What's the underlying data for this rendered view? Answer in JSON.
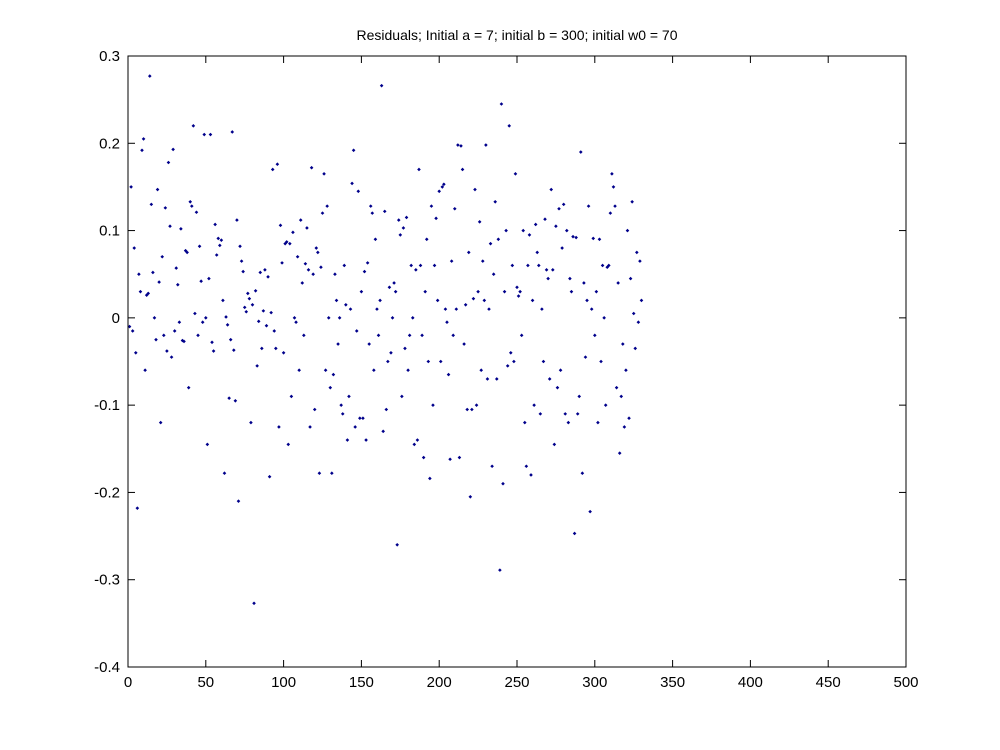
{
  "chart_data": {
    "type": "scatter",
    "title": "Residuals; Initial a = 7; initial b = 300; initial w0 = 70",
    "xlabel": "",
    "ylabel": "",
    "xlim": [
      0,
      500
    ],
    "ylim": [
      -0.4,
      0.3
    ],
    "xticks": [
      "0",
      "50",
      "100",
      "150",
      "200",
      "250",
      "300",
      "350",
      "400",
      "450",
      "500"
    ],
    "yticks": [
      "0.3",
      "0.2",
      "0.1",
      "0",
      "-0.1",
      "-0.2",
      "-0.3",
      "-0.4"
    ],
    "grid": false,
    "marker_color": "#00008B",
    "x_start": 1,
    "values": [
      -0.01,
      0.15,
      -0.015,
      0.08,
      -0.04,
      -0.218,
      0.05,
      0.03,
      0.192,
      0.205,
      -0.06,
      0.026,
      0.028,
      0.277,
      0.13,
      0.052,
      0.0,
      -0.025,
      0.147,
      0.041,
      -0.12,
      0.07,
      -0.02,
      0.126,
      -0.038,
      0.178,
      0.105,
      -0.045,
      0.193,
      -0.015,
      0.057,
      0.038,
      -0.005,
      0.102,
      -0.026,
      -0.027,
      0.077,
      0.075,
      -0.08,
      0.133,
      0.128,
      0.22,
      0.005,
      0.121,
      -0.02,
      0.082,
      0.042,
      -0.005,
      0.21,
      0.0,
      -0.145,
      0.045,
      0.21,
      -0.028,
      -0.038,
      0.107,
      0.072,
      0.091,
      0.083,
      0.089,
      0.02,
      -0.178,
      0.001,
      -0.008,
      -0.092,
      -0.025,
      0.213,
      -0.037,
      -0.095,
      0.112,
      -0.21,
      0.082,
      0.065,
      0.053,
      0.012,
      0.007,
      0.028,
      0.022,
      -0.12,
      0.015,
      -0.327,
      0.031,
      -0.055,
      -0.004,
      0.052,
      -0.035,
      0.008,
      0.055,
      -0.009,
      0.047,
      -0.182,
      0.006,
      0.17,
      -0.015,
      -0.035,
      0.176,
      -0.125,
      0.106,
      0.063,
      -0.04,
      0.085,
      0.087,
      -0.145,
      0.085,
      -0.09,
      0.098,
      0.0,
      -0.005,
      0.07,
      -0.06,
      0.112,
      0.04,
      -0.02,
      0.062,
      0.103,
      0.055,
      -0.125,
      0.172,
      0.05,
      -0.105,
      0.08,
      0.075,
      -0.178,
      0.058,
      0.12,
      0.165,
      -0.06,
      0.128,
      0.0,
      -0.08,
      -0.178,
      -0.065,
      0.05,
      0.02,
      -0.03,
      0.0,
      -0.1,
      -0.11,
      0.06,
      0.015,
      -0.14,
      -0.09,
      0.01,
      0.154,
      0.192,
      -0.125,
      -0.015,
      0.145,
      -0.115,
      0.03,
      -0.115,
      0.053,
      -0.14,
      0.063,
      -0.03,
      0.128,
      0.12,
      -0.06,
      0.09,
      0.01,
      -0.02,
      0.02,
      0.266,
      -0.13,
      0.122,
      -0.105,
      -0.05,
      0.035,
      -0.04,
      0.0,
      0.04,
      0.03,
      -0.26,
      0.112,
      0.095,
      -0.09,
      0.103,
      -0.035,
      0.115,
      -0.06,
      -0.02,
      0.06,
      0.0,
      -0.145,
      0.055,
      -0.14,
      0.17,
      0.06,
      -0.02,
      -0.16,
      0.03,
      0.09,
      -0.05,
      -0.184,
      0.128,
      -0.1,
      0.06,
      0.114,
      0.02,
      0.145,
      -0.05,
      0.15,
      0.153,
      0.01,
      -0.005,
      -0.065,
      -0.162,
      0.065,
      -0.02,
      0.125,
      0.01,
      0.198,
      -0.16,
      0.197,
      0.17,
      -0.03,
      0.015,
      -0.105,
      0.075,
      -0.205,
      -0.105,
      0.022,
      0.147,
      -0.1,
      0.03,
      0.11,
      -0.06,
      0.065,
      0.02,
      0.198,
      -0.07,
      0.01,
      0.085,
      -0.17,
      0.05,
      0.133,
      -0.07,
      0.09,
      -0.289,
      0.245,
      -0.19,
      0.03,
      0.1,
      -0.055,
      0.22,
      -0.04,
      0.06,
      -0.05,
      0.165,
      0.035,
      0.025,
      0.03,
      -0.02,
      0.1,
      -0.12,
      -0.17,
      0.06,
      0.095,
      -0.18,
      0.02,
      -0.1,
      0.107,
      0.075,
      0.06,
      -0.11,
      0.01,
      -0.05,
      0.113,
      0.055,
      0.045,
      -0.07,
      0.147,
      0.055,
      -0.145,
      0.105,
      -0.08,
      0.125,
      -0.06,
      0.08,
      0.13,
      -0.11,
      0.1,
      -0.12,
      0.045,
      0.03,
      0.093,
      -0.247,
      0.092,
      -0.11,
      -0.09,
      0.19,
      -0.178,
      0.04,
      -0.045,
      0.02,
      0.128,
      -0.222,
      0.01,
      0.091,
      -0.02,
      0.03,
      -0.12,
      0.09,
      -0.05,
      0.06,
      0.0,
      -0.1,
      0.058,
      0.06,
      0.12,
      0.165,
      0.15,
      0.128,
      -0.08,
      0.04,
      -0.155,
      -0.09,
      -0.03,
      -0.125,
      -0.06,
      0.1,
      -0.115,
      0.045,
      0.133,
      0.005,
      -0.035,
      0.075,
      -0.005,
      0.065,
      0.02
    ]
  }
}
